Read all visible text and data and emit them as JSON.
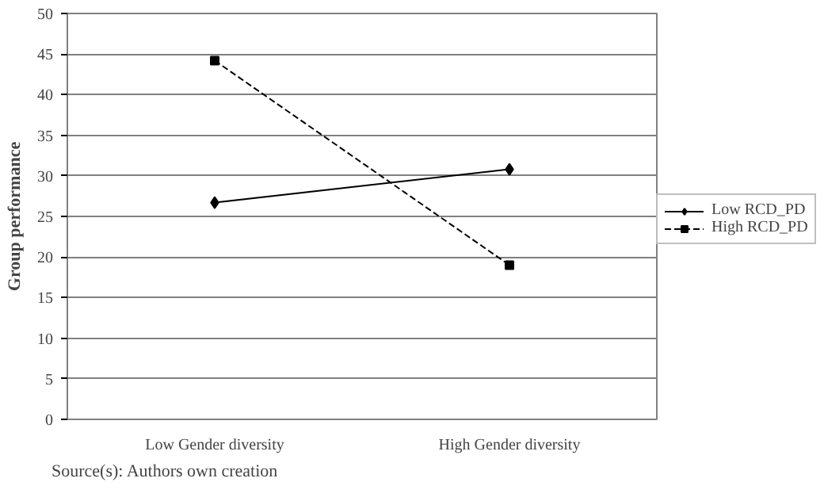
{
  "chart_data": {
    "type": "line",
    "ylabel": "Group performance",
    "categories": [
      "Low Gender diversity",
      "High Gender diversity"
    ],
    "series": [
      {
        "name": "Low RCD_PD",
        "color": "#000000",
        "values": [
          26.7,
          30.8
        ],
        "marker": "diamond",
        "line_style": "solid"
      },
      {
        "name": "High RCD_PD",
        "color": "#000000",
        "values": [
          44.2,
          19.0
        ],
        "marker": "square",
        "line_style": "dashed"
      }
    ],
    "ylim": [
      0,
      50
    ],
    "yticks": [
      0,
      5,
      10,
      15,
      20,
      25,
      30,
      35,
      40,
      45,
      50
    ],
    "grid": "y",
    "legend": "right",
    "annotations": [
      "Source(s): Authors own creation"
    ]
  }
}
